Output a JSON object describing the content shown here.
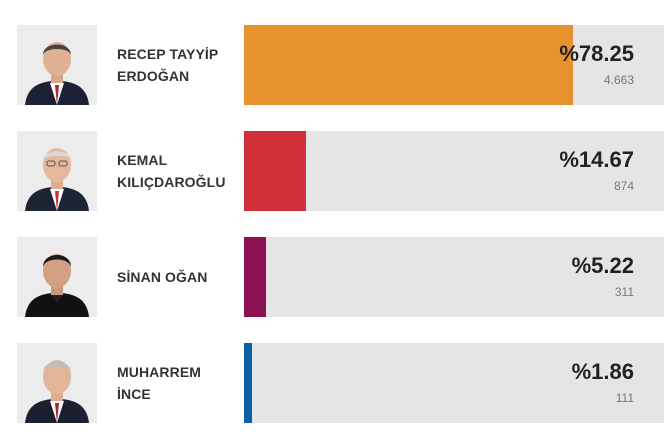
{
  "candidates": [
    {
      "first_line": "RECEP TAYYİP",
      "second_line": "ERDOĞAN",
      "percent_label": "%78.25",
      "percent_value": 78.25,
      "votes": "4.663",
      "bar_color": "#e8922f",
      "photo_icon": "candidate-photo-erdogan"
    },
    {
      "first_line": "KEMAL",
      "second_line": "KILIÇDAROĞLU",
      "percent_label": "%14.67",
      "percent_value": 14.67,
      "votes": "874",
      "bar_color": "#d0303a",
      "photo_icon": "candidate-photo-kilicdaroglu"
    },
    {
      "first_line": "SİNAN OĞAN",
      "second_line": "",
      "percent_label": "%5.22",
      "percent_value": 5.22,
      "votes": "311",
      "bar_color": "#8c1152",
      "photo_icon": "candidate-photo-ogan"
    },
    {
      "first_line": "MUHARREM",
      "second_line": "İNCE",
      "percent_label": "%1.86",
      "percent_value": 1.86,
      "votes": "111",
      "bar_color": "#0b5fa5",
      "photo_icon": "candidate-photo-ince"
    }
  ]
}
